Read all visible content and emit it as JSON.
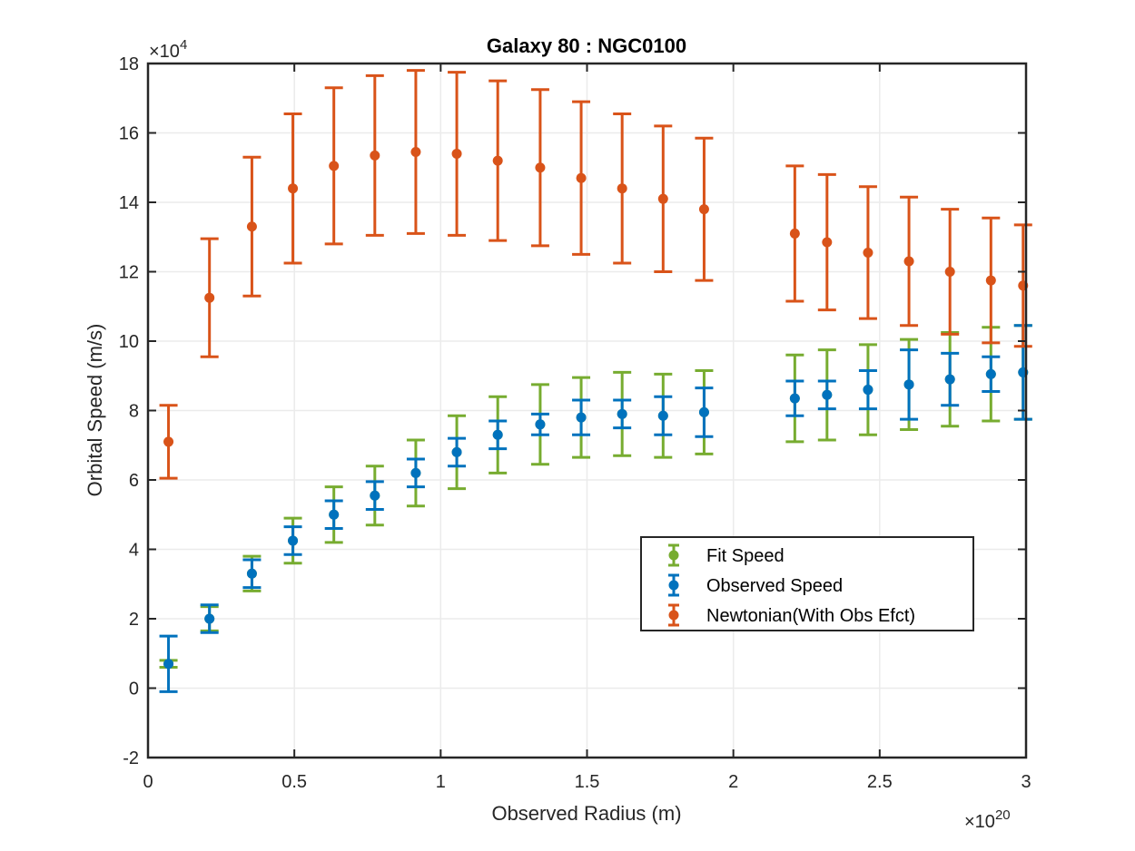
{
  "chart_data": {
    "type": "errorbar",
    "title": "Galaxy 80 : NGC0100",
    "xlabel": "Observed Radius (m)",
    "ylabel": "Orbital Speed (m/s)",
    "x_multiplier_label": "×10",
    "x_multiplier_exp": "20",
    "y_multiplier_label": "×10",
    "y_multiplier_exp": "4",
    "xlim": [
      0,
      3
    ],
    "ylim": [
      -2,
      18
    ],
    "xticks": [
      0,
      0.5,
      1,
      1.5,
      2,
      2.5,
      3
    ],
    "xtick_labels": [
      "0",
      "0.5",
      "1",
      "1.5",
      "2",
      "2.5",
      "3"
    ],
    "yticks": [
      -2,
      0,
      2,
      4,
      6,
      8,
      10,
      12,
      14,
      16,
      18
    ],
    "ytick_labels": [
      "-2",
      "0",
      "2",
      "4",
      "6",
      "8",
      "10",
      "12",
      "14",
      "16",
      "18"
    ],
    "grid": true,
    "legend_position": "lower-right",
    "x": [
      0.07,
      0.21,
      0.355,
      0.495,
      0.635,
      0.775,
      0.915,
      1.055,
      1.195,
      1.34,
      1.48,
      1.62,
      1.76,
      1.9,
      2.21,
      2.32,
      2.46,
      2.6,
      2.74,
      2.88,
      2.99
    ],
    "series": [
      {
        "name": "Fit Speed",
        "color": "#77ac30",
        "values": [
          0.7,
          2.0,
          3.3,
          4.25,
          5.0,
          5.55,
          6.2,
          6.8,
          7.3,
          7.6,
          7.8,
          7.9,
          7.85,
          7.95,
          8.35,
          8.45,
          8.6,
          8.75,
          8.9,
          9.05,
          9.1
        ],
        "errors": [
          0.1,
          0.35,
          0.5,
          0.65,
          0.8,
          0.85,
          0.95,
          1.05,
          1.1,
          1.15,
          1.15,
          1.2,
          1.2,
          1.2,
          1.25,
          1.3,
          1.3,
          1.3,
          1.35,
          1.35,
          1.35
        ]
      },
      {
        "name": "Observed Speed",
        "color": "#0072bd",
        "values": [
          0.7,
          2.0,
          3.3,
          4.25,
          5.0,
          5.55,
          6.2,
          6.8,
          7.3,
          7.6,
          7.8,
          7.9,
          7.85,
          7.95,
          8.35,
          8.45,
          8.6,
          8.75,
          8.9,
          9.05,
          9.1
        ],
        "errors": [
          0.8,
          0.4,
          0.4,
          0.4,
          0.4,
          0.4,
          0.4,
          0.4,
          0.4,
          0.3,
          0.5,
          0.4,
          0.55,
          0.7,
          0.5,
          0.4,
          0.55,
          1.0,
          0.75,
          0.5,
          1.35
        ]
      },
      {
        "name": "Newtonian(With Obs Efct)",
        "color": "#d95319",
        "values": [
          7.1,
          11.25,
          13.3,
          14.4,
          15.05,
          15.35,
          15.45,
          15.4,
          15.2,
          15.0,
          14.7,
          14.4,
          14.1,
          13.8,
          13.1,
          12.85,
          12.55,
          12.3,
          12.0,
          11.75,
          11.6
        ],
        "errors": [
          1.05,
          1.7,
          2.0,
          2.15,
          2.25,
          2.3,
          2.35,
          2.35,
          2.3,
          2.25,
          2.2,
          2.15,
          2.1,
          2.05,
          1.95,
          1.95,
          1.9,
          1.85,
          1.8,
          1.8,
          1.75
        ]
      }
    ]
  }
}
